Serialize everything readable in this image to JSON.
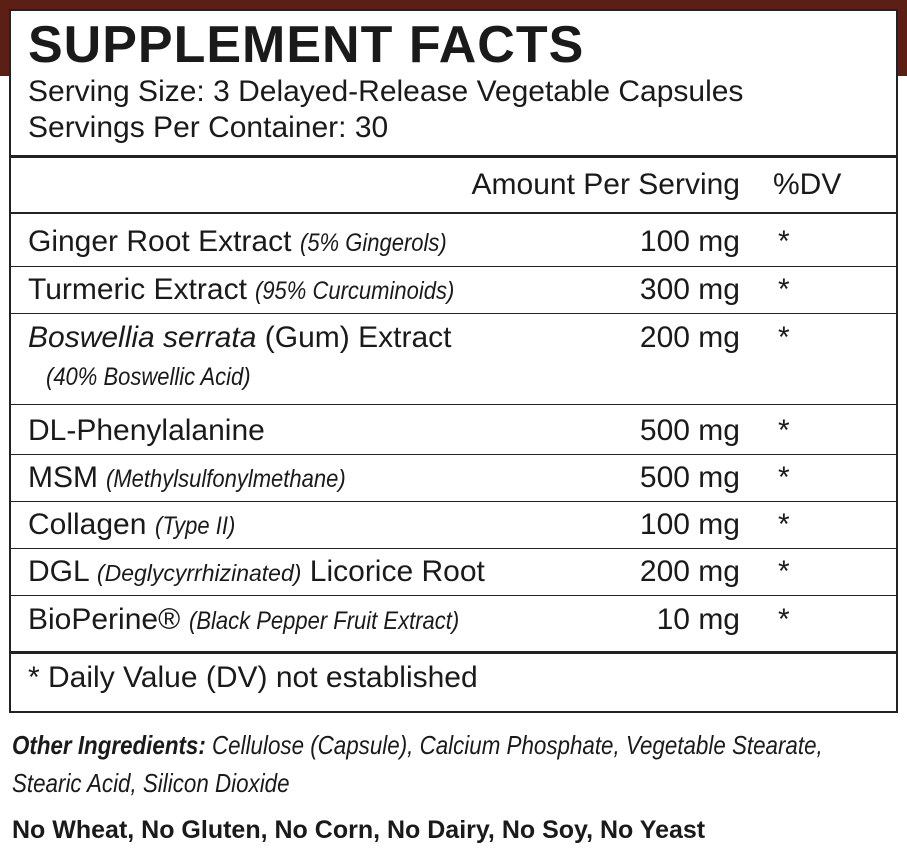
{
  "header": {
    "title": "SUPPLEMENT FACTS",
    "serving_size": "Serving Size: 3 Delayed-Release Vegetable Capsules",
    "servings_per_container": "Servings Per Container: 30"
  },
  "table": {
    "columns": [
      "Amount Per Serving",
      "%DV"
    ],
    "rows": [
      {
        "name": [
          "Ginger Root Extract",
          "(5% Gingerols)"
        ],
        "amount": "100 mg",
        "dv": "*"
      },
      {
        "name": [
          "Turmeric Extract",
          "(95% Curcuminoids)"
        ],
        "amount": "300 mg",
        "dv": "*"
      },
      {
        "name": [
          "Boswellia serrata",
          "(Gum) Extract",
          "(40% Boswellic Acid)"
        ],
        "amount": "200 mg",
        "dv": "*"
      },
      {
        "name": [
          "DL-Phenylalanine"
        ],
        "amount": "500 mg",
        "dv": "*"
      },
      {
        "name": [
          "MSM",
          "(Methylsulfonylmethane)"
        ],
        "amount": "500 mg",
        "dv": "*"
      },
      {
        "name": [
          "Collagen",
          "(Type II)"
        ],
        "amount": "100 mg",
        "dv": "*"
      },
      {
        "name": [
          "DGL",
          "(Deglycyrrhizinated)",
          "Licorice Root"
        ],
        "amount": "200 mg",
        "dv": "*"
      },
      {
        "name": [
          "BioPerine®",
          "(Black Pepper Fruit Extract)"
        ],
        "amount": "10 mg",
        "dv": "*"
      }
    ],
    "footnote": "* Daily Value (DV) not established"
  },
  "other_ingredients": {
    "label": "Other Ingredients:",
    "text": "Cellulose (Capsule), Calcium Phosphate, Vegetable Stearate, Stearic Acid, Silicon Dioxide"
  },
  "allergens": "No Wheat, No Gluten, No Corn, No Dairy, No Soy, No Yeast"
}
